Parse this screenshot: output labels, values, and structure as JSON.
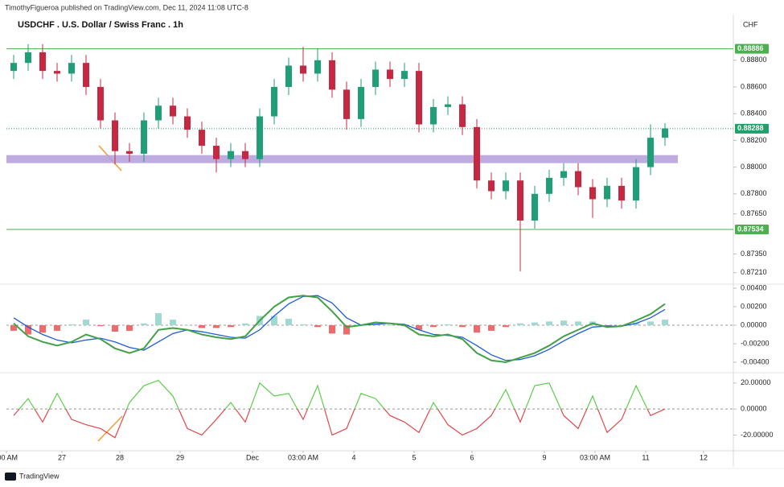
{
  "header": {
    "byline": "TimothyFigueroa published on TradingView.com, Dec 11, 2024 11:08 UTC-8",
    "brand": "TradingView"
  },
  "chart_data": {
    "type": "candlestick",
    "title": "USDCHF . U.S. Dollar / Swiss Franc . 1h",
    "currency": "CHF",
    "colors": {
      "up": "#1f9e78",
      "down": "#c62842"
    },
    "x": [
      3,
      9,
      15,
      21,
      27,
      33,
      39,
      45,
      51,
      57,
      63,
      69,
      75,
      81,
      87,
      93,
      99,
      105,
      111,
      117,
      123,
      129,
      135,
      141,
      147,
      153,
      159,
      165,
      171,
      177,
      183,
      189,
      195,
      201,
      207,
      213,
      219,
      225,
      231,
      237,
      243,
      249,
      255,
      261,
      267,
      273
    ],
    "open": [
      0.8872,
      0.8878,
      0.8886,
      0.8872,
      0.887,
      0.8878,
      0.886,
      0.8835,
      0.8812,
      0.881,
      0.8835,
      0.8846,
      0.8838,
      0.8828,
      0.8816,
      0.8806,
      0.8812,
      0.8806,
      0.8838,
      0.886,
      0.8876,
      0.887,
      0.888,
      0.8858,
      0.8836,
      0.886,
      0.8873,
      0.8866,
      0.8872,
      0.8832,
      0.8845,
      0.8847,
      0.883,
      0.879,
      0.8782,
      0.879,
      0.876,
      0.878,
      0.8792,
      0.8797,
      0.8785,
      0.8776,
      0.8786,
      0.8775,
      0.88,
      0.8822
    ],
    "high": [
      0.8884,
      0.8892,
      0.8892,
      0.8878,
      0.8884,
      0.8884,
      0.8866,
      0.8841,
      0.8818,
      0.8841,
      0.8852,
      0.8852,
      0.8844,
      0.8834,
      0.8822,
      0.8818,
      0.8818,
      0.8844,
      0.8866,
      0.8882,
      0.889,
      0.8889,
      0.8886,
      0.8864,
      0.8866,
      0.8879,
      0.8879,
      0.8878,
      0.8878,
      0.8851,
      0.8853,
      0.8853,
      0.8836,
      0.8796,
      0.8796,
      0.8796,
      0.8786,
      0.8798,
      0.8803,
      0.8803,
      0.8791,
      0.8792,
      0.8792,
      0.8806,
      0.8832,
      0.8833
    ],
    "low": [
      0.8866,
      0.8872,
      0.8866,
      0.8864,
      0.8864,
      0.8854,
      0.8829,
      0.8802,
      0.8804,
      0.8804,
      0.8829,
      0.8832,
      0.8822,
      0.881,
      0.8796,
      0.88,
      0.88,
      0.88,
      0.8832,
      0.8854,
      0.8864,
      0.8864,
      0.8852,
      0.8828,
      0.883,
      0.8854,
      0.886,
      0.886,
      0.8826,
      0.8826,
      0.8839,
      0.8824,
      0.8784,
      0.8776,
      0.8776,
      0.8722,
      0.8754,
      0.8774,
      0.8786,
      0.8779,
      0.8762,
      0.877,
      0.8769,
      0.8769,
      0.8794,
      0.8816
    ],
    "close": [
      0.8878,
      0.8886,
      0.8872,
      0.887,
      0.8878,
      0.886,
      0.8835,
      0.8812,
      0.881,
      0.8835,
      0.8846,
      0.8838,
      0.8828,
      0.8816,
      0.8806,
      0.8812,
      0.8806,
      0.8838,
      0.886,
      0.8876,
      0.887,
      0.888,
      0.8858,
      0.8836,
      0.886,
      0.8873,
      0.8866,
      0.8872,
      0.8832,
      0.8845,
      0.8847,
      0.883,
      0.879,
      0.8782,
      0.879,
      0.876,
      0.878,
      0.8792,
      0.8797,
      0.8785,
      0.8776,
      0.8786,
      0.8775,
      0.88,
      0.8822,
      0.8829
    ],
    "xlim": [
      0,
      301
    ],
    "xticks": [
      {
        "value": 0,
        "label": ":00 AM"
      },
      {
        "value": 23,
        "label": "27"
      },
      {
        "value": 47,
        "label": "28"
      },
      {
        "value": 72,
        "label": "29"
      },
      {
        "value": 102,
        "label": "Dec"
      },
      {
        "value": 123,
        "label": "03:00 AM"
      },
      {
        "value": 144,
        "label": "4"
      },
      {
        "value": 169,
        "label": "5"
      },
      {
        "value": 193,
        "label": "6"
      },
      {
        "value": 223,
        "label": "9"
      },
      {
        "value": 244,
        "label": "03:00 AM"
      },
      {
        "value": 265,
        "label": "11"
      },
      {
        "value": 289,
        "label": "12"
      }
    ],
    "ylim": [
      0.8713,
      0.8901
    ],
    "yticks": [
      {
        "value": 0.888,
        "label": "0.88800"
      },
      {
        "value": 0.886,
        "label": "0.88600"
      },
      {
        "value": 0.884,
        "label": "0.88400"
      },
      {
        "value": 0.882,
        "label": "0.88200"
      },
      {
        "value": 0.88,
        "label": "0.88000"
      },
      {
        "value": 0.878,
        "label": "0.87800"
      },
      {
        "value": 0.8765,
        "label": "0.87650"
      },
      {
        "value": 0.8735,
        "label": "0.87350"
      },
      {
        "value": 0.8721,
        "label": "0.87210"
      }
    ],
    "levels": [
      {
        "value": 0.88886,
        "label": "0.88886",
        "style": "solid",
        "color": "#4caf50"
      },
      {
        "value": 0.88288,
        "label": "0.88288",
        "style": "dotted",
        "color": "#22a06b"
      },
      {
        "value": 0.87534,
        "label": "0.87534",
        "style": "solid",
        "color": "#4caf50"
      }
    ],
    "zone": {
      "from": 0.8803,
      "to": 0.8809,
      "color": "#b39ddb"
    },
    "macd": {
      "ylim": [
        -0.00504,
        0.00426
      ],
      "yticks": [
        {
          "value": 0.004,
          "label": "0.00400"
        },
        {
          "value": 0.002,
          "label": "0.00200"
        },
        {
          "value": 0,
          "label": "0.00000"
        },
        {
          "value": -0.002,
          "label": "-0.00200"
        },
        {
          "value": -0.004,
          "label": "-0.00400"
        }
      ],
      "macd_color": "#43a047",
      "signal_color": "#1e5bd8",
      "hist_up": "#9fd9cf",
      "hist_down": "#ef6b6b",
      "macd": [
        0.0002,
        -0.0012,
        -0.0018,
        -0.0022,
        -0.0018,
        -0.001,
        -0.0015,
        -0.0025,
        -0.003,
        -0.0025,
        -0.0005,
        -0.0003,
        -0.0005,
        -0.001,
        -0.0013,
        -0.0015,
        -0.0012,
        0.0005,
        0.002,
        0.003,
        0.0032,
        0.003,
        0.0015,
        -0.0002,
        0,
        0.0003,
        0.0002,
        0,
        -0.001,
        -0.0012,
        -0.001,
        -0.0015,
        -0.003,
        -0.0038,
        -0.004,
        -0.0035,
        -0.003,
        -0.0022,
        -0.0012,
        -0.0005,
        0.0002,
        -0.0002,
        -0.0001,
        0.0005,
        0.0012,
        0.0023
      ],
      "signal": [
        0.0008,
        -0.0002,
        -0.001,
        -0.0016,
        -0.0019,
        -0.0016,
        -0.0014,
        -0.0018,
        -0.0024,
        -0.0027,
        -0.0018,
        -0.0009,
        -0.0005,
        -0.0007,
        -0.001,
        -0.0013,
        -0.0014,
        -0.0005,
        0.001,
        0.0023,
        0.0031,
        0.0032,
        0.0024,
        0.0008,
        0,
        0.0001,
        0.0002,
        0.0001,
        -0.0005,
        -0.001,
        -0.0011,
        -0.0013,
        -0.0022,
        -0.0032,
        -0.0038,
        -0.0037,
        -0.0033,
        -0.0026,
        -0.0017,
        -0.0009,
        -0.0002,
        -0.0001,
        -0.0001,
        0.0002,
        0.0008,
        0.0017
      ],
      "histogram": [
        -0.0006,
        -0.001,
        -0.0008,
        -0.0006,
        0.0001,
        0.0006,
        -0.0001,
        -0.0007,
        -0.0006,
        0.0002,
        0.0013,
        0.0006,
        0,
        -0.0003,
        -0.0003,
        -0.0002,
        0.0002,
        0.001,
        0.001,
        0.0007,
        0.0001,
        -0.0002,
        -0.0009,
        -0.001,
        0,
        0.0002,
        0,
        -0.0001,
        -0.0005,
        -0.0002,
        0.0001,
        -0.0002,
        -0.0008,
        -0.0006,
        -0.0002,
        0.0002,
        0.0003,
        0.0004,
        0.0005,
        0.0004,
        0.0004,
        -0.0001,
        0,
        0.0003,
        0.0004,
        0.0006
      ]
    },
    "oscillator": {
      "ylim": [
        -32.1,
        26.7
      ],
      "yticks": [
        {
          "value": 20,
          "label": "20.00000"
        },
        {
          "value": 0,
          "label": "0.00000"
        },
        {
          "value": -20,
          "label": "-20.00000"
        }
      ],
      "up_color": "#5ccf4a",
      "down_color": "#e0474c",
      "values": [
        -5,
        8,
        -10,
        12,
        -8,
        -12,
        -15,
        -22,
        5,
        18,
        22,
        10,
        -15,
        -20,
        -8,
        5,
        -10,
        20,
        10,
        12,
        -8,
        18,
        -20,
        -15,
        12,
        8,
        -5,
        -10,
        -18,
        5,
        -12,
        -20,
        -15,
        -5,
        15,
        -10,
        18,
        20,
        -5,
        -15,
        10,
        -18,
        -8,
        18,
        -5,
        0
      ]
    }
  }
}
